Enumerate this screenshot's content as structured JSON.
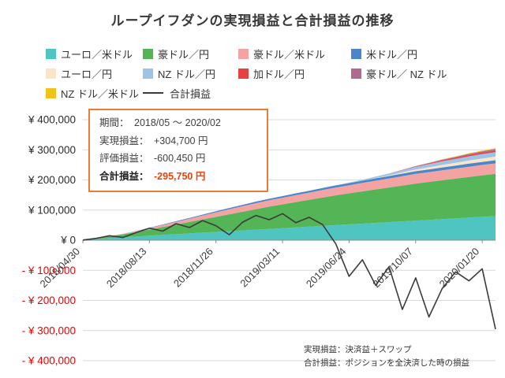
{
  "title": "ループイフダンの実現損益と合計損益の推移",
  "colors": {
    "box_border": "#ed7d31",
    "highlight_value": "#e8430a",
    "axis_negative": "#ee0000",
    "axis_text": "#3a3a3a",
    "total_line": "#3b3b3b",
    "gridline": "#d9d9d9",
    "axis_line": "#8c8c8c"
  },
  "info_box": {
    "lines": [
      {
        "label": "期間：",
        "value": "2018/05 ～ 2020/02"
      },
      {
        "label": "実現損益：",
        "value": "+304,700 円"
      },
      {
        "label": "評価損益：",
        "value": "-600,450 円"
      },
      {
        "label": "合計損益：",
        "value": "-295,750 円"
      }
    ]
  },
  "footnote": {
    "line1": "実現損益：決済益＋スワップ",
    "line2": "合計損益：ポジションを全決済した時の損益"
  },
  "y_axis": {
    "labels": [
      {
        "text": "¥ 400,000",
        "value": 400000
      },
      {
        "text": "¥ 300,000",
        "value": 300000
      },
      {
        "text": "¥ 200,000",
        "value": 200000
      },
      {
        "text": "¥ 100,000",
        "value": 100000
      },
      {
        "text": "¥ 0",
        "value": 0
      },
      {
        "text": "- ¥ 100,000",
        "value": -100000
      },
      {
        "text": "- ¥ 200,000",
        "value": -200000
      },
      {
        "text": "- ¥ 300,000",
        "value": -300000
      },
      {
        "text": "- ¥ 400,000",
        "value": -400000
      }
    ]
  },
  "chart_data": {
    "type": "area",
    "stacked": true,
    "ylim": [
      -400000,
      400000
    ],
    "x_tick_labels": [
      {
        "index": 0,
        "label": "2018/04/30"
      },
      {
        "index": 5,
        "label": "2018/08/13"
      },
      {
        "index": 10,
        "label": "2018/11/26"
      },
      {
        "index": 15,
        "label": "2019/03/11"
      },
      {
        "index": 20,
        "label": "2019/06/24"
      },
      {
        "index": 25,
        "label": "2019/10/07"
      },
      {
        "index": 30,
        "label": "2020/01/20"
      }
    ],
    "series": [
      {
        "name": "ユーロ／米ドル",
        "color": "#4ec5c1",
        "values": [
          2000,
          4500,
          7000,
          9500,
          12000,
          15000,
          17500,
          20000,
          22500,
          25000,
          27500,
          30000,
          32500,
          35000,
          37500,
          40000,
          42500,
          45000,
          47500,
          50000,
          52500,
          55000,
          57500,
          60000,
          62500,
          65000,
          67500,
          70000,
          72500,
          75000,
          77500,
          80000
        ]
      },
      {
        "name": "豪ドル／円",
        "color": "#53b556",
        "values": [
          1500,
          3500,
          6000,
          10000,
          15000,
          20000,
          26000,
          32000,
          38000,
          44000,
          50000,
          56000,
          62000,
          68000,
          74000,
          79000,
          84000,
          89000,
          94000,
          99000,
          103000,
          107000,
          111000,
          115000,
          119000,
          123000,
          126000,
          129000,
          132000,
          135000,
          138000,
          140000
        ]
      },
      {
        "name": "豪ドル／米ドル",
        "color": "#f4a3a3",
        "values": [
          0,
          0,
          500,
          1500,
          3000,
          5000,
          7000,
          9000,
          11000,
          13000,
          15000,
          17000,
          18500,
          20000,
          21000,
          22000,
          23000,
          24000,
          25000,
          26000,
          27000,
          28000,
          29000,
          30000,
          31000,
          32000,
          32500,
          33000,
          33500,
          34000,
          34500,
          35000
        ]
      },
      {
        "name": "米ドル／円",
        "color": "#4a86c8",
        "values": [
          0,
          0,
          0,
          0,
          500,
          1000,
          1500,
          2000,
          2500,
          3000,
          3500,
          4000,
          4500,
          5000,
          5000,
          5500,
          6000,
          6000,
          6500,
          7000,
          7000,
          7500,
          8000,
          8000,
          8500,
          9000,
          9000,
          9500,
          9500,
          10000,
          10000,
          10500
        ]
      },
      {
        "name": "ユーロ／円",
        "color": "#fbe5c9",
        "values": [
          0,
          0,
          0,
          0,
          0,
          0,
          0,
          0,
          0,
          0,
          0,
          0,
          0,
          0,
          0,
          0,
          0,
          0,
          0,
          0,
          0,
          0,
          1000,
          2500,
          4000,
          5500,
          7000,
          8500,
          9500,
          10500,
          11500,
          12000
        ]
      },
      {
        "name": "NZ ドル／円",
        "color": "#9dc3e6",
        "values": [
          0,
          0,
          0,
          0,
          0,
          0,
          0,
          0,
          0,
          0,
          0,
          0,
          0,
          0,
          0,
          0,
          0,
          0,
          0,
          0,
          1500,
          3000,
          4500,
          6000,
          7500,
          9000,
          10500,
          12000,
          13000,
          14000,
          14500,
          15000
        ]
      },
      {
        "name": "加ドル／円",
        "color": "#e84040",
        "values": [
          0,
          0,
          0,
          0,
          0,
          0,
          0,
          0,
          0,
          0,
          0,
          0,
          0,
          0,
          0,
          0,
          0,
          0,
          0,
          0,
          0,
          0,
          0,
          0,
          800,
          1500,
          2200,
          3000,
          3600,
          4200,
          4700,
          5000
        ]
      },
      {
        "name": "豪ドル／ NZ ドル",
        "color": "#af6a92",
        "values": [
          0,
          0,
          0,
          0,
          0,
          0,
          0,
          0,
          0,
          0,
          0,
          0,
          0,
          0,
          0,
          0,
          0,
          0,
          0,
          0,
          0,
          0,
          0,
          0,
          500,
          1000,
          1800,
          2500,
          3200,
          3800,
          4400,
          5000
        ]
      },
      {
        "name": "NZ ドル／米ドル",
        "color": "#efc319",
        "values": [
          0,
          0,
          0,
          0,
          0,
          0,
          0,
          0,
          0,
          0,
          0,
          0,
          0,
          0,
          0,
          0,
          0,
          0,
          0,
          0,
          0,
          0,
          0,
          0,
          0,
          0,
          500,
          1000,
          1500,
          2000,
          2500,
          3000
        ]
      }
    ],
    "total_line": {
      "name": "合計損益",
      "color": "#3b3b3b",
      "values": [
        0,
        6000,
        15000,
        9000,
        25000,
        40000,
        30000,
        55000,
        42000,
        65000,
        48000,
        18000,
        60000,
        82000,
        68000,
        88000,
        58000,
        76000,
        52000,
        -12000,
        -120000,
        -65000,
        -150000,
        -88000,
        -230000,
        -125000,
        -255000,
        -160000,
        -105000,
        -135000,
        -95000,
        -295750
      ]
    }
  }
}
